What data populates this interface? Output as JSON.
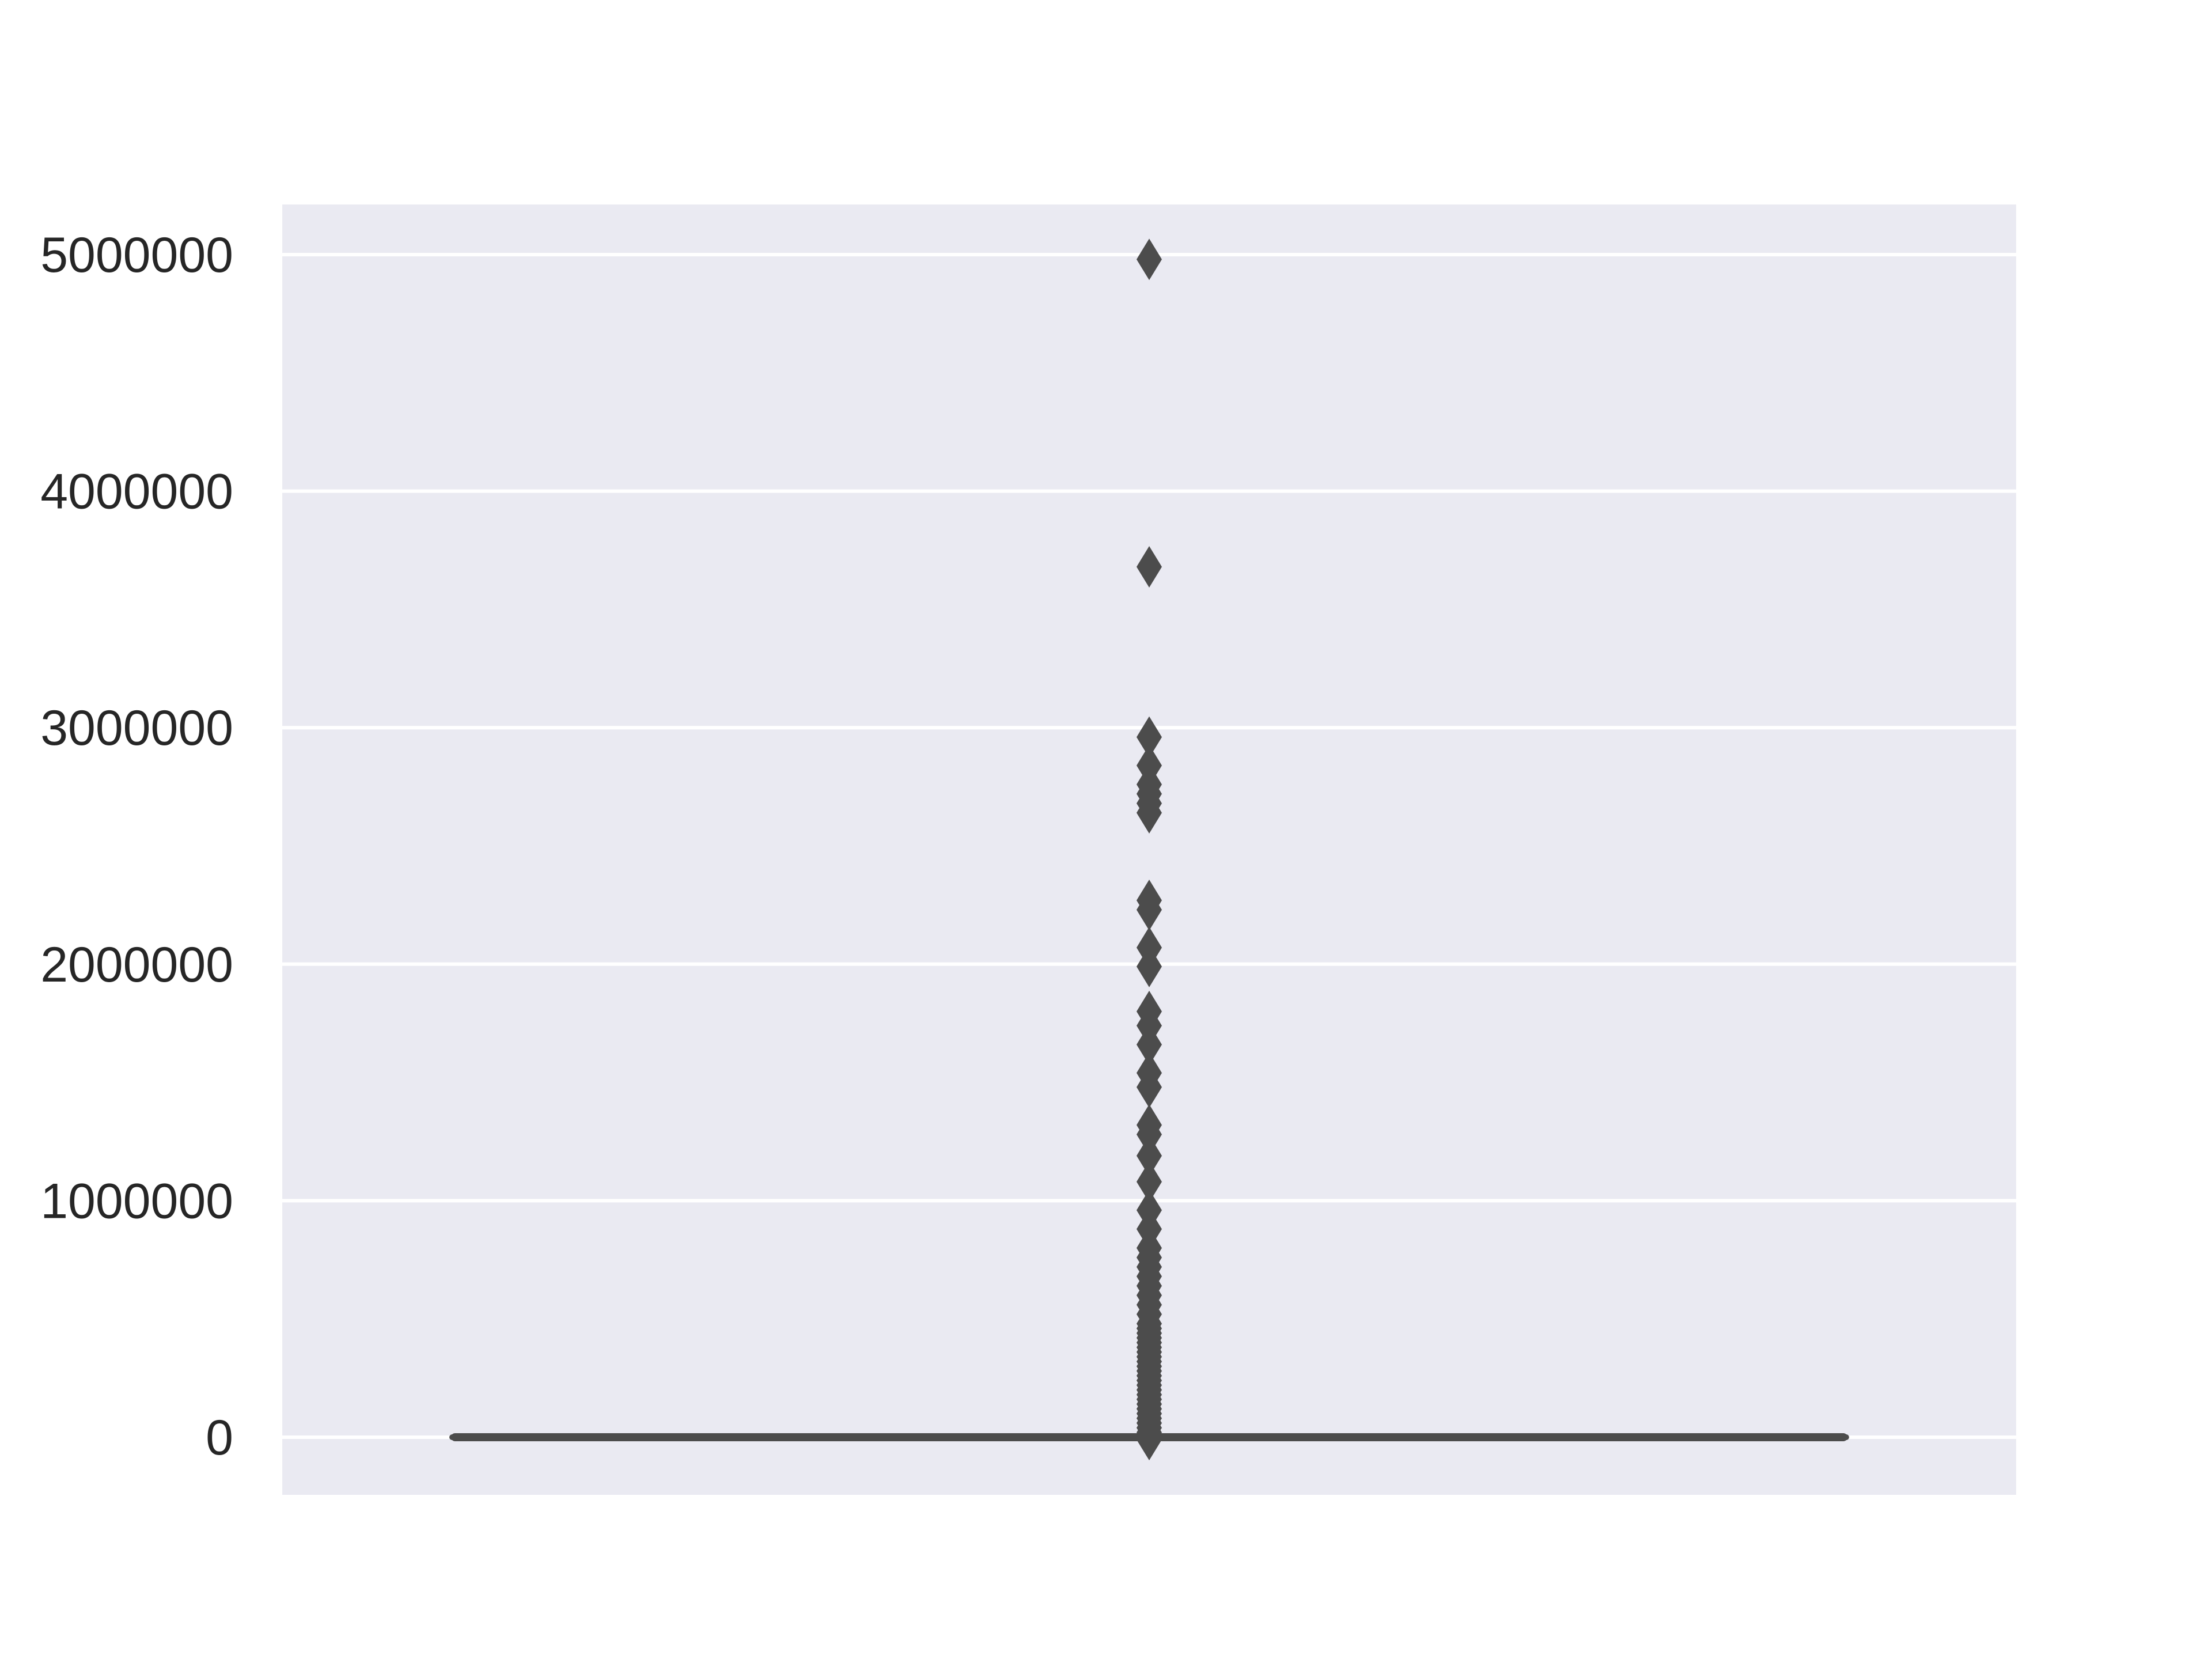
{
  "chart_data": {
    "type": "box",
    "title": "",
    "xlabel": "",
    "ylabel": "",
    "ylim": [
      -250000,
      5200000
    ],
    "yticks": [
      0,
      1000000,
      2000000,
      3000000,
      4000000,
      5000000
    ],
    "ytick_labels": [
      "0",
      "1000000",
      "2000000",
      "3000000",
      "4000000",
      "5000000"
    ],
    "grid": true,
    "box": {
      "q1": 0,
      "median": 0,
      "q3": 0,
      "whisker_low": 0,
      "whisker_high": 0
    },
    "outliers": [
      4980000,
      3680000,
      2960000,
      2840000,
      2760000,
      2720000,
      2680000,
      2640000,
      2270000,
      2230000,
      2070000,
      1990000,
      1800000,
      1740000,
      1660000,
      1540000,
      1480000,
      1320000,
      1280000,
      1190000,
      1080000,
      960000,
      880000,
      800000,
      760000,
      720000,
      680000,
      640000,
      600000,
      560000,
      520000,
      480000,
      460000,
      440000,
      420000,
      400000,
      380000,
      360000,
      340000,
      320000,
      300000,
      280000,
      260000,
      240000,
      220000,
      200000,
      180000,
      160000,
      140000,
      120000,
      100000,
      80000,
      60000,
      40000,
      20000,
      -10000
    ],
    "colors": {
      "plot_background": "#eaeaf2",
      "gridline": "#ffffff",
      "box": "#4c4c4c",
      "outlier": "#4c4c4c",
      "text": "#262626"
    }
  }
}
